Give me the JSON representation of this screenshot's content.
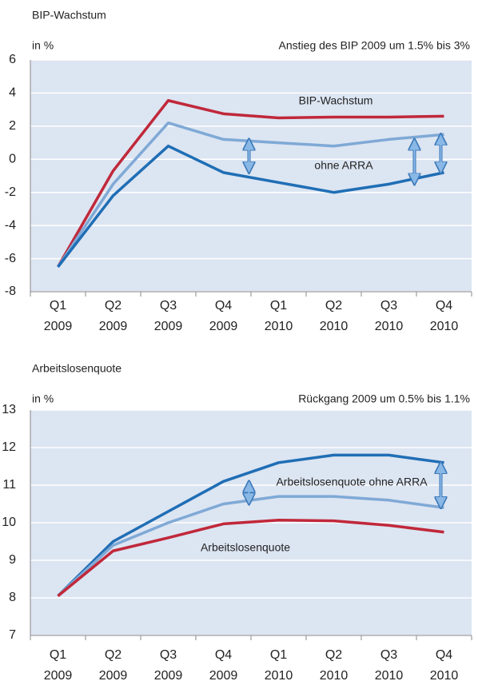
{
  "chart_data": [
    {
      "type": "line",
      "title": "BIP-Wachstum",
      "y_label": "in %",
      "annotation": "Anstieg des BIP 2009 um 1.5% bis 3%",
      "categories": [
        "Q1 2009",
        "Q2 2009",
        "Q3 2009",
        "Q4 2009",
        "Q1 2010",
        "Q2 2010",
        "Q3 2010",
        "Q4 2010"
      ],
      "ylim": [
        -8,
        6
      ],
      "yticks": [
        -8,
        -6,
        -4,
        -2,
        0,
        2,
        4,
        6
      ],
      "grid": true,
      "series": [
        {
          "name": "BIP-Wachstum",
          "color": "#c0283a",
          "values": [
            -6.5,
            -0.7,
            3.55,
            2.75,
            2.5,
            2.55,
            2.55,
            2.6
          ]
        },
        {
          "color": "#7fa9d6",
          "values": [
            -6.5,
            -1.5,
            2.2,
            1.2,
            1.0,
            0.8,
            1.2,
            1.5
          ]
        },
        {
          "name": "ohne ARRA",
          "color": "#1f6eb5",
          "values": [
            -6.5,
            -2.2,
            0.8,
            -0.8,
            -1.4,
            -2.0,
            -1.5,
            -0.8
          ]
        }
      ]
    },
    {
      "type": "line",
      "title": "Arbeitslosenquote",
      "y_label": "in %",
      "annotation": "Rückgang 2009 um 0.5% bis 1.1%",
      "categories": [
        "Q1 2009",
        "Q2 2009",
        "Q3 2009",
        "Q4 2009",
        "Q1 2010",
        "Q2 2010",
        "Q3 2010",
        "Q4 2010"
      ],
      "ylim": [
        7,
        13
      ],
      "yticks": [
        7,
        8,
        9,
        10,
        11,
        12,
        13
      ],
      "grid": true,
      "series": [
        {
          "name": "Arbeitslosenquote ohne ARRA",
          "color": "#1f6eb5",
          "values": [
            8.05,
            9.5,
            10.3,
            11.1,
            11.6,
            11.8,
            11.8,
            11.6
          ]
        },
        {
          "color": "#7fa9d6",
          "values": [
            8.05,
            9.4,
            10.0,
            10.5,
            10.7,
            10.7,
            10.6,
            10.4
          ]
        },
        {
          "name": "Arbeitslosenquote",
          "color": "#c0283a",
          "values": [
            8.05,
            9.25,
            9.6,
            9.97,
            10.07,
            10.05,
            9.93,
            9.75
          ]
        }
      ]
    }
  ]
}
